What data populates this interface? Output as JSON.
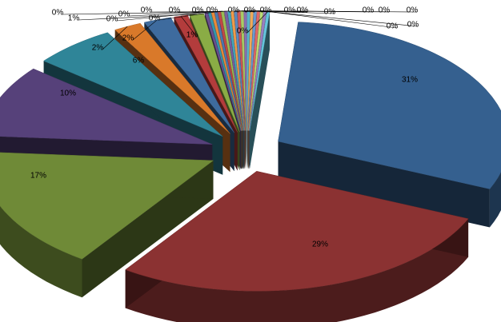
{
  "chart_data": {
    "type": "pie",
    "style": "3d-exploded",
    "slices": [
      {
        "label": "31%",
        "value": 31,
        "color": "#35608f"
      },
      {
        "label": "29%",
        "value": 29,
        "color": "#8b3232"
      },
      {
        "label": "17%",
        "value": 17,
        "color": "#6f8a37"
      },
      {
        "label": "10%",
        "value": 10,
        "color": "#56417a"
      },
      {
        "label": "6%",
        "value": 6,
        "color": "#2f8598"
      },
      {
        "label": "2%",
        "value": 2,
        "color": "#d9792a"
      },
      {
        "label": "2%",
        "value": 2,
        "color": "#3e6b9e"
      },
      {
        "label": "1%",
        "value": 1,
        "color": "#b33c3c"
      },
      {
        "label": "1%",
        "value": 1,
        "color": "#8aac45"
      },
      {
        "label": "0%",
        "value": 0.2,
        "color": "#6a4f8f"
      },
      {
        "label": "0%",
        "value": 0.2,
        "color": "#3596ad"
      },
      {
        "label": "0%",
        "value": 0.2,
        "color": "#e88a3a"
      },
      {
        "label": "0%",
        "value": 0.2,
        "color": "#4a7ab0"
      },
      {
        "label": "0%",
        "value": 0.2,
        "color": "#c04848"
      },
      {
        "label": "0%",
        "value": 0.2,
        "color": "#9bbd55"
      },
      {
        "label": "0%",
        "value": 0.2,
        "color": "#7a5fa0"
      },
      {
        "label": "0%",
        "value": 0.2,
        "color": "#45a6bd"
      },
      {
        "label": "0%",
        "value": 0.2,
        "color": "#f09a4a"
      },
      {
        "label": "0%",
        "value": 0.2,
        "color": "#5a8ac0"
      },
      {
        "label": "0%",
        "value": 0.2,
        "color": "#d05858"
      },
      {
        "label": "0%",
        "value": 0.2,
        "color": "#abcd65"
      },
      {
        "label": "0%",
        "value": 0.2,
        "color": "#8a6fb0"
      },
      {
        "label": "0%",
        "value": 0.2,
        "color": "#55b6cd"
      },
      {
        "label": "0%",
        "value": 0.2,
        "color": "#f0aa5a"
      },
      {
        "label": "0%",
        "value": 0.2,
        "color": "#6a9ad0"
      },
      {
        "label": "0%",
        "value": 0.2,
        "color": "#e06868"
      },
      {
        "label": "0%",
        "value": 0.2,
        "color": "#bbdd75"
      },
      {
        "label": "0%",
        "value": 0.2,
        "color": "#9a7fc0"
      },
      {
        "label": "0%",
        "value": 0.2,
        "color": "#65c6dd"
      }
    ],
    "title": "",
    "legend": "none"
  }
}
